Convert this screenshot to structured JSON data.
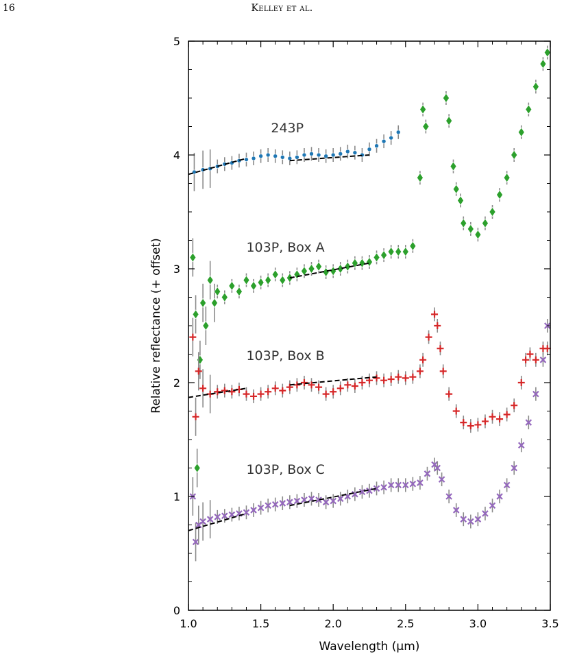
{
  "page": {
    "number": "16",
    "running_head": "Kelley et al."
  },
  "chart_data": {
    "type": "scatter",
    "xlabel": "Wavelength (µm)",
    "ylabel": "Relative reflectance (+ offset)",
    "xlim": [
      1.0,
      3.5
    ],
    "ylim": [
      0,
      5
    ],
    "xticks": [
      1.0,
      1.5,
      2.0,
      2.5,
      3.0,
      3.5
    ],
    "xtick_labels": [
      "1.0",
      "1.5",
      "2.0",
      "2.5",
      "3.0",
      "3.5"
    ],
    "yticks": [
      0,
      1,
      2,
      3,
      4,
      5
    ],
    "ytick_labels": [
      "0",
      "1",
      "2",
      "3",
      "4",
      "5"
    ],
    "grid": false,
    "legend": "none",
    "annotations": [
      {
        "text": "243P",
        "x": 1.57,
        "y": 4.2
      },
      {
        "text": "103P, Box A",
        "x": 1.4,
        "y": 3.15
      },
      {
        "text": "103P, Box B",
        "x": 1.4,
        "y": 2.2
      },
      {
        "text": "103P, Box C",
        "x": 1.4,
        "y": 1.2
      }
    ],
    "series": [
      {
        "marker": "circle",
        "color": "#1f77b4",
        "x": [
          1.04,
          1.1,
          1.15,
          1.2,
          1.25,
          1.3,
          1.35,
          1.4,
          1.45,
          1.5,
          1.55,
          1.6,
          1.65,
          1.7,
          1.75,
          1.8,
          1.85,
          1.9,
          1.95,
          2.0,
          2.05,
          2.1,
          2.15,
          2.2,
          2.25,
          2.3,
          2.35,
          2.4,
          2.45
        ],
        "y": [
          3.85,
          3.87,
          3.88,
          3.9,
          3.92,
          3.93,
          3.95,
          3.96,
          3.97,
          3.99,
          4.0,
          3.99,
          3.98,
          3.97,
          3.98,
          4.0,
          4.01,
          4.0,
          3.99,
          4.0,
          4.01,
          4.03,
          4.02,
          4.0,
          4.05,
          4.08,
          4.12,
          4.15,
          4.2
        ]
      },
      {
        "marker": "diamond",
        "color": "#2ca02c",
        "x": [
          1.03,
          1.05,
          1.06,
          1.08,
          1.1,
          1.12,
          1.15,
          1.18,
          1.2,
          1.25,
          1.3,
          1.35,
          1.4,
          1.45,
          1.5,
          1.55,
          1.6,
          1.65,
          1.7,
          1.75,
          1.8,
          1.85,
          1.9,
          1.95,
          2.0,
          2.05,
          2.1,
          2.15,
          2.2,
          2.25,
          2.3,
          2.35,
          2.4,
          2.45,
          2.5,
          2.55,
          2.6,
          2.62,
          2.64,
          2.78,
          2.8,
          2.83,
          2.85,
          2.88,
          2.9,
          2.95,
          3.0,
          3.05,
          3.1,
          3.15,
          3.2,
          3.25,
          3.3,
          3.35,
          3.4,
          3.45,
          3.48
        ],
        "y": [
          3.1,
          2.6,
          1.25,
          2.2,
          2.7,
          2.5,
          2.9,
          2.7,
          2.8,
          2.75,
          2.85,
          2.8,
          2.9,
          2.85,
          2.88,
          2.9,
          2.95,
          2.9,
          2.92,
          2.95,
          2.98,
          3.0,
          3.02,
          2.97,
          2.98,
          3.0,
          3.02,
          3.05,
          3.05,
          3.06,
          3.1,
          3.12,
          3.15,
          3.15,
          3.15,
          3.2,
          3.8,
          4.4,
          4.25,
          4.5,
          4.3,
          3.9,
          3.7,
          3.6,
          3.4,
          3.35,
          3.3,
          3.4,
          3.5,
          3.65,
          3.8,
          4.0,
          4.2,
          4.4,
          4.6,
          4.8,
          4.9
        ]
      },
      {
        "marker": "plus",
        "color": "#d62728",
        "x": [
          1.03,
          1.05,
          1.07,
          1.1,
          1.15,
          1.2,
          1.25,
          1.3,
          1.35,
          1.4,
          1.45,
          1.5,
          1.55,
          1.6,
          1.65,
          1.7,
          1.75,
          1.8,
          1.85,
          1.9,
          1.95,
          2.0,
          2.05,
          2.1,
          2.15,
          2.2,
          2.25,
          2.3,
          2.35,
          2.4,
          2.45,
          2.5,
          2.55,
          2.6,
          2.62,
          2.66,
          2.7,
          2.72,
          2.74,
          2.76,
          2.8,
          2.85,
          2.9,
          2.95,
          3.0,
          3.05,
          3.1,
          3.15,
          3.2,
          3.25,
          3.3,
          3.33,
          3.36,
          3.4,
          3.45,
          3.48
        ],
        "y": [
          2.4,
          1.7,
          2.1,
          1.95,
          1.9,
          1.92,
          1.93,
          1.92,
          1.94,
          1.9,
          1.88,
          1.9,
          1.92,
          1.95,
          1.93,
          1.96,
          1.98,
          2.0,
          1.98,
          1.96,
          1.9,
          1.92,
          1.95,
          1.98,
          1.97,
          2.0,
          2.02,
          2.04,
          2.02,
          2.03,
          2.05,
          2.04,
          2.05,
          2.1,
          2.2,
          2.4,
          2.6,
          2.5,
          2.3,
          2.1,
          1.9,
          1.75,
          1.65,
          1.62,
          1.63,
          1.66,
          1.7,
          1.68,
          1.72,
          1.8,
          2.0,
          2.2,
          2.25,
          2.2,
          2.3,
          2.3
        ]
      },
      {
        "marker": "x",
        "color": "#9467bd",
        "x": [
          1.03,
          1.05,
          1.07,
          1.1,
          1.15,
          1.2,
          1.25,
          1.3,
          1.35,
          1.4,
          1.45,
          1.5,
          1.55,
          1.6,
          1.65,
          1.7,
          1.75,
          1.8,
          1.85,
          1.9,
          1.95,
          2.0,
          2.05,
          2.1,
          2.15,
          2.2,
          2.25,
          2.3,
          2.35,
          2.4,
          2.45,
          2.5,
          2.55,
          2.6,
          2.65,
          2.7,
          2.72,
          2.75,
          2.8,
          2.85,
          2.9,
          2.95,
          3.0,
          3.05,
          3.1,
          3.15,
          3.2,
          3.25,
          3.3,
          3.35,
          3.4,
          3.45,
          3.48
        ],
        "y": [
          1.0,
          0.6,
          0.75,
          0.78,
          0.8,
          0.82,
          0.83,
          0.84,
          0.85,
          0.86,
          0.88,
          0.9,
          0.92,
          0.93,
          0.94,
          0.95,
          0.96,
          0.97,
          0.98,
          0.97,
          0.95,
          0.96,
          0.98,
          1.0,
          1.02,
          1.04,
          1.05,
          1.07,
          1.08,
          1.1,
          1.1,
          1.1,
          1.11,
          1.12,
          1.2,
          1.28,
          1.25,
          1.15,
          1.0,
          0.88,
          0.8,
          0.78,
          0.8,
          0.85,
          0.92,
          1.0,
          1.1,
          1.25,
          1.45,
          1.65,
          1.9,
          2.2,
          2.5
        ]
      }
    ],
    "fit_lines": [
      {
        "x": [
          1.0,
          1.4
        ],
        "y": [
          3.83,
          3.97
        ]
      },
      {
        "x": [
          1.7,
          2.25
        ],
        "y": [
          3.95,
          4.0
        ]
      },
      {
        "x": [
          1.7,
          2.25
        ],
        "y": [
          2.92,
          3.05
        ]
      },
      {
        "x": [
          1.0,
          1.4
        ],
        "y": [
          1.87,
          1.95
        ]
      },
      {
        "x": [
          1.7,
          2.3
        ],
        "y": [
          1.98,
          2.05
        ]
      },
      {
        "x": [
          1.0,
          1.4
        ],
        "y": [
          0.7,
          0.85
        ]
      },
      {
        "x": [
          1.7,
          2.3
        ],
        "y": [
          0.92,
          1.07
        ]
      }
    ]
  }
}
